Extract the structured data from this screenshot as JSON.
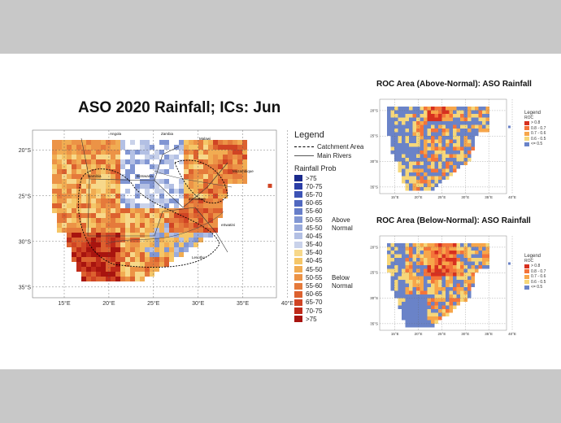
{
  "main": {
    "title": "ASO 2020 Rainfall; ICs: Jun",
    "lat_labels": [
      "20°S",
      "25°S",
      "30°S",
      "35°S"
    ],
    "lon_labels": [
      "15°E",
      "20°E",
      "25°E",
      "30°E",
      "35°E",
      "40°E"
    ],
    "place_labels": [
      "Angola",
      "Zambia",
      "Malawi",
      "Namibia",
      "Botswana",
      "Zimbabwe",
      "Mozambique",
      "Lesotho",
      "eSwatini"
    ]
  },
  "legend": {
    "title": "Legend",
    "catchment": "Catchment Area",
    "rivers": "Main Rivers",
    "rainfall_title": "Rainfall Prob",
    "above_group": [
      "Above",
      "Normal"
    ],
    "below_group": [
      "Below",
      "Normal"
    ],
    "classes": [
      {
        "label": ">75",
        "color": "#1a2a8c"
      },
      {
        "label": "70-75",
        "color": "#2b3ea6"
      },
      {
        "label": "65-70",
        "color": "#3c53b5"
      },
      {
        "label": "60-65",
        "color": "#5068c0"
      },
      {
        "label": "55-60",
        "color": "#677ec9"
      },
      {
        "label": "50-55",
        "color": "#8196d3"
      },
      {
        "label": "45-50",
        "color": "#9aabdc"
      },
      {
        "label": "40-45",
        "color": "#b3c0e4"
      },
      {
        "label": "35-40",
        "color": "#c9d2ea"
      },
      {
        "label": "35-40",
        "color": "#f7d88a"
      },
      {
        "label": "40-45",
        "color": "#f5c668"
      },
      {
        "label": "45-50",
        "color": "#f1ac52"
      },
      {
        "label": "50-55",
        "color": "#ec9346"
      },
      {
        "label": "55-60",
        "color": "#e57a3b"
      },
      {
        "label": "60-65",
        "color": "#dc612f"
      },
      {
        "label": "65-70",
        "color": "#d04424"
      },
      {
        "label": "70-75",
        "color": "#bf2a19"
      },
      {
        "label": ">75",
        "color": "#a8140f"
      }
    ]
  },
  "roc_above": {
    "title": "ROC Area (Above-Normal): ASO Rainfall",
    "lat_labels": [
      "20°S",
      "25°S",
      "30°S",
      "35°S"
    ],
    "lon_labels": [
      "15°E",
      "20°E",
      "25°E",
      "30°E",
      "35°E",
      "40°E"
    ]
  },
  "roc_below": {
    "title": "ROC Area (Below-Normal): ASO Rainfall",
    "lat_labels": [
      "20°S",
      "25°S",
      "30°S",
      "35°S"
    ],
    "lon_labels": [
      "15°E",
      "20°E",
      "25°E",
      "30°E",
      "35°E",
      "40°E"
    ]
  },
  "roc_legend": {
    "title": "Legend",
    "subtitle": "ROC",
    "classes": [
      {
        "label": "> 0.8",
        "color": "#d7301f"
      },
      {
        "label": "0.8 - 0.7",
        "color": "#f4743a"
      },
      {
        "label": "0.7 - 0.6",
        "color": "#f7a64a"
      },
      {
        "label": "0.6 - 0.5",
        "color": "#f6d77a"
      },
      {
        "label": "<= 0.5",
        "color": "#6a83c8"
      }
    ]
  }
}
